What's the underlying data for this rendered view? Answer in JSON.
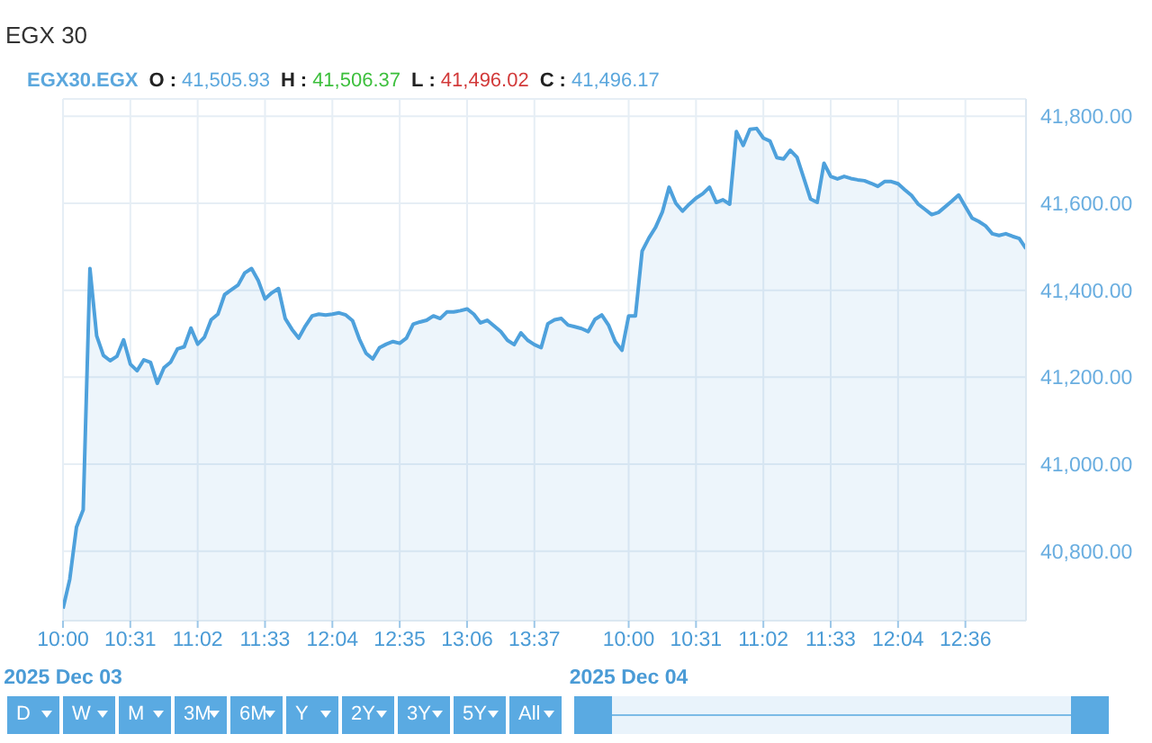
{
  "chart_data": {
    "type": "area",
    "title": "EGX 30",
    "subtitle": "EGX30.EGX O : 41,505.93 H : 41,506.37 L : 41,496.02 C : 41,496.17",
    "categories": [
      "10:00\n2025 Dec 03",
      null,
      null,
      null,
      null,
      null,
      null,
      null,
      null,
      null,
      "10:31",
      null,
      null,
      null,
      null,
      null,
      null,
      null,
      null,
      null,
      "11:02",
      null,
      null,
      null,
      null,
      null,
      null,
      null,
      null,
      null,
      "11:33",
      null,
      null,
      null,
      null,
      null,
      null,
      null,
      null,
      null,
      "12:04",
      null,
      null,
      null,
      null,
      null,
      null,
      null,
      null,
      null,
      "12:35",
      null,
      null,
      null,
      null,
      null,
      null,
      null,
      null,
      null,
      "13:06",
      null,
      null,
      null,
      null,
      null,
      null,
      null,
      null,
      null,
      "13:37",
      null,
      null,
      null,
      null,
      null,
      null,
      null,
      null,
      null,
      null,
      null,
      null,
      null,
      "10:00\n2025 Dec 04",
      null,
      null,
      null,
      null,
      null,
      null,
      null,
      null,
      null,
      "10:31",
      null,
      null,
      null,
      null,
      null,
      null,
      null,
      null,
      null,
      "11:02",
      null,
      null,
      null,
      null,
      null,
      null,
      null,
      null,
      null,
      "11:33",
      null,
      null,
      null,
      null,
      null,
      null,
      null,
      null,
      null,
      "12:04",
      null,
      null,
      null,
      null,
      null,
      null,
      null,
      null,
      null,
      "12:36",
      null,
      null,
      null,
      null,
      null,
      null,
      null,
      null,
      null
    ],
    "values": [
      40668,
      40735,
      40855,
      40895,
      41450,
      41295,
      41250,
      41238,
      41248,
      41286,
      41230,
      41215,
      41240,
      41234,
      41186,
      41222,
      41235,
      41265,
      41270,
      41313,
      41276,
      41292,
      41332,
      41345,
      41390,
      41401,
      41412,
      41440,
      41450,
      41422,
      41380,
      41394,
      41404,
      41335,
      41310,
      41290,
      41318,
      41341,
      41345,
      41343,
      41345,
      41348,
      41343,
      41330,
      41288,
      41255,
      41242,
      41268,
      41276,
      41282,
      41278,
      41290,
      41322,
      41327,
      41331,
      41341,
      41335,
      41350,
      41350,
      41353,
      41357,
      41345,
      41325,
      41331,
      41318,
      41305,
      41285,
      41275,
      41302,
      41285,
      41275,
      41268,
      41323,
      41332,
      41335,
      41320,
      41316,
      41312,
      41305,
      41333,
      41343,
      41320,
      41282,
      41262,
      41341,
      41341,
      41490,
      41520,
      41545,
      41580,
      41637,
      41600,
      41582,
      41598,
      41612,
      41622,
      41637,
      41602,
      41608,
      41598,
      41765,
      41733,
      41770,
      41772,
      41750,
      41743,
      41705,
      41702,
      41722,
      41706,
      41658,
      41610,
      41602,
      41692,
      41662,
      41656,
      41662,
      41657,
      41654,
      41652,
      41646,
      41639,
      41650,
      41650,
      41645,
      41631,
      41618,
      41598,
      41586,
      41574,
      41579,
      41592,
      41605,
      41619,
      41592,
      41566,
      41558,
      41548,
      41530,
      41526,
      41530,
      41524,
      41519,
      41496
    ],
    "color": "#4ea1dc",
    "ylim": [
      40640,
      41840
    ],
    "yticks": [
      {
        "value": 40800,
        "label": "40,800.00"
      },
      {
        "value": 41000,
        "label": "41,000.00"
      },
      {
        "value": 41200,
        "label": "41,200.00"
      },
      {
        "value": 41400,
        "label": "41,400.00"
      },
      {
        "value": 41600,
        "label": "41,600.00"
      },
      {
        "value": 41800,
        "label": "41,800.00"
      }
    ],
    "grid": true,
    "annotations": [
      "D",
      "W",
      "M",
      "3M",
      "6M",
      "Y",
      "2Y",
      "3Y",
      "5Y",
      "All"
    ]
  }
}
